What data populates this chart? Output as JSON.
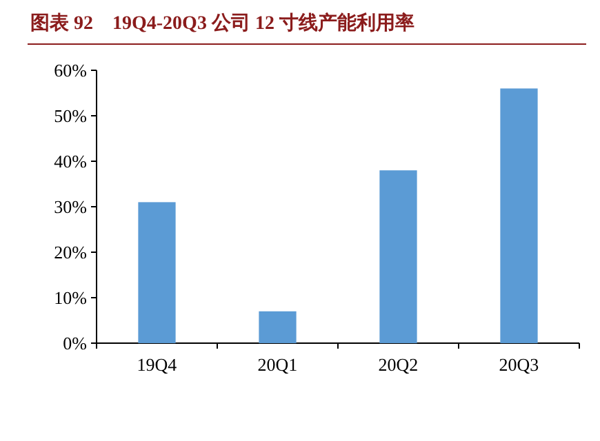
{
  "chart_data": {
    "type": "bar",
    "title": "图表 92　19Q4-20Q3 公司 12 寸线产能利用率",
    "categories": [
      "19Q4",
      "20Q1",
      "20Q2",
      "20Q3"
    ],
    "values": [
      31,
      7,
      38,
      56
    ],
    "color": "#5b9bd5",
    "ylim": [
      0,
      60
    ],
    "yticks": [
      {
        "value": 0,
        "label": "0%"
      },
      {
        "value": 10,
        "label": "10%"
      },
      {
        "value": 20,
        "label": "20%"
      },
      {
        "value": 30,
        "label": "30%"
      },
      {
        "value": 40,
        "label": "40%"
      },
      {
        "value": 50,
        "label": "50%"
      },
      {
        "value": 60,
        "label": "60%"
      }
    ]
  }
}
